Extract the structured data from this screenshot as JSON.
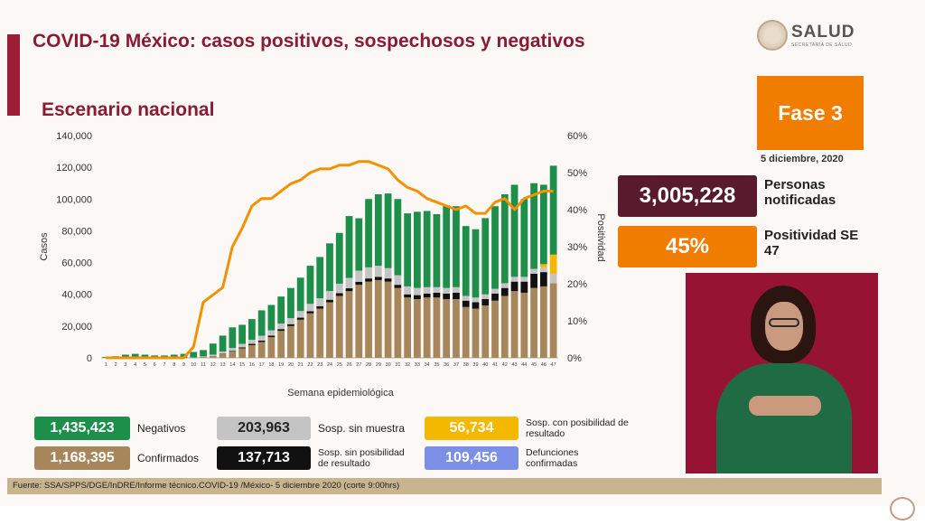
{
  "title": "COVID-19 México: casos positivos, sospechosos y negativos",
  "subtitle": "Escenario nacional",
  "logo": {
    "main": "SALUD",
    "sub": "SECRETARÍA DE SALUD"
  },
  "phase": "Fase 3",
  "date": "5 diciembre, 2020",
  "kpis": {
    "notified_value": "3,005,228",
    "notified_label": "Personas notificadas",
    "positivity_value": "45%",
    "positivity_label": "Positividad SE 47"
  },
  "legend": {
    "negativos_value": "1,435,423",
    "negativos_label": "Negativos",
    "confirmados_value": "1,168,395",
    "confirmados_label": "Confirmados",
    "sosp_sin_muestra_value": "203,963",
    "sosp_sin_muestra_label": "Sosp. sin muestra",
    "sosp_sin_posibilidad_value": "137,713",
    "sosp_sin_posibilidad_label": "Sosp. sin posibilidad de resultado",
    "sosp_con_posibilidad_value": "56,734",
    "sosp_con_posibilidad_label": "Sosp. con posibilidad de resultado",
    "defunciones_value": "109,456",
    "defunciones_label": "Defunciones confirmadas"
  },
  "source": "Fuente: SSA/SPPS/DGE/InDRE/Informe técnico.COVID-19 /México- 5 diciembre 2020 (corte 9:00hrs)",
  "colors": {
    "confirmados": "#a8865b",
    "sin_posibilidad": "#111111",
    "sin_muestra": "#c4c4c4",
    "con_posibilidad": "#f5b800",
    "negativos": "#1d8f4a",
    "positividad": "#f39200",
    "defunciones": "#7b8fe6",
    "title": "#8b1a33"
  },
  "chart_data": {
    "type": "bar",
    "stacked": true,
    "xlabel": "Semana epidemiológica",
    "ylabel": "Casos",
    "y2label": "Positividad",
    "ylim": [
      0,
      140000
    ],
    "y2lim": [
      0,
      60
    ],
    "yticks": [
      "0",
      "20,000",
      "40,000",
      "60,000",
      "80,000",
      "100,000",
      "120,000",
      "140,000"
    ],
    "y2ticks": [
      "0%",
      "10%",
      "20%",
      "30%",
      "40%",
      "50%",
      "60%"
    ],
    "categories": [
      "1",
      "2",
      "3",
      "4",
      "5",
      "6",
      "7",
      "8",
      "9",
      "10",
      "11",
      "12",
      "13",
      "14",
      "15",
      "16",
      "17",
      "18",
      "19",
      "20",
      "21",
      "22",
      "23",
      "24",
      "25",
      "26",
      "27",
      "28",
      "29",
      "30",
      "31",
      "32",
      "33",
      "34",
      "35",
      "36",
      "37",
      "38",
      "39",
      "40",
      "41",
      "42",
      "43",
      "44",
      "45",
      "46",
      "47"
    ],
    "series": [
      {
        "name": "Confirmados",
        "values": [
          0,
          0,
          0,
          0,
          0,
          0,
          0,
          0,
          0,
          100,
          500,
          1200,
          2500,
          4000,
          6000,
          8000,
          10000,
          13000,
          17000,
          20000,
          24000,
          28000,
          31000,
          35000,
          39000,
          42000,
          46000,
          48000,
          49000,
          48000,
          44000,
          38000,
          37000,
          38000,
          38000,
          37000,
          37000,
          32000,
          31000,
          33000,
          36000,
          39000,
          42000,
          41000,
          44000,
          45000,
          47000
        ]
      },
      {
        "name": "Sosp. sin posibilidad de resultado",
        "values": [
          0,
          0,
          0,
          0,
          0,
          0,
          0,
          0,
          0,
          0,
          0,
          0,
          200,
          400,
          600,
          800,
          900,
          1000,
          1100,
          1200,
          1300,
          1400,
          1500,
          1600,
          1700,
          1800,
          1900,
          2000,
          2000,
          2000,
          2000,
          2000,
          2500,
          2500,
          3000,
          3500,
          4000,
          4000,
          4000,
          4000,
          4500,
          5000,
          6000,
          7000,
          9000,
          9000,
          0
        ]
      },
      {
        "name": "Sosp. sin muestra",
        "values": [
          0,
          0,
          0,
          0,
          0,
          0,
          0,
          0,
          0,
          100,
          400,
          800,
          1300,
          1800,
          2200,
          2600,
          3000,
          3300,
          3500,
          3800,
          4200,
          4600,
          5000,
          5500,
          6000,
          6500,
          7000,
          7000,
          7000,
          6500,
          6000,
          5000,
          4500,
          4000,
          3500,
          3500,
          3500,
          3000,
          3000,
          3000,
          3000,
          3000,
          3000,
          3000,
          3000,
          3000,
          6000
        ]
      },
      {
        "name": "Sosp. con posibilidad de resultado",
        "values": [
          0,
          0,
          0,
          0,
          0,
          0,
          0,
          0,
          0,
          0,
          0,
          0,
          0,
          0,
          0,
          0,
          0,
          0,
          0,
          0,
          0,
          0,
          0,
          0,
          0,
          0,
          0,
          0,
          0,
          0,
          0,
          0,
          0,
          0,
          0,
          0,
          0,
          0,
          0,
          0,
          0,
          0,
          0,
          0,
          0,
          2000,
          12000
        ]
      },
      {
        "name": "Negativos",
        "values": [
          500,
          1000,
          2000,
          2500,
          2000,
          1500,
          1500,
          2000,
          2500,
          3500,
          4000,
          7000,
          10000,
          13000,
          12000,
          13000,
          16000,
          16000,
          17000,
          19000,
          21000,
          24000,
          26000,
          30000,
          32000,
          39000,
          33000,
          43000,
          45000,
          47000,
          48000,
          46000,
          48000,
          48000,
          46000,
          52000,
          51000,
          44000,
          43000,
          48000,
          52000,
          56000,
          58000,
          49000,
          54000,
          50000,
          56000
        ]
      },
      {
        "name": "Positividad",
        "axis": "y2",
        "type": "line",
        "values": [
          0,
          0,
          0,
          0,
          0,
          0,
          0,
          0,
          0,
          3,
          15,
          17,
          19,
          30,
          35,
          41,
          43,
          43,
          45,
          47,
          48,
          50,
          51,
          51,
          52,
          52,
          53,
          53,
          52,
          51,
          48,
          46,
          45,
          43,
          42,
          41,
          40,
          41,
          39,
          39,
          42,
          43,
          40,
          43,
          44,
          45,
          45
        ]
      }
    ]
  }
}
